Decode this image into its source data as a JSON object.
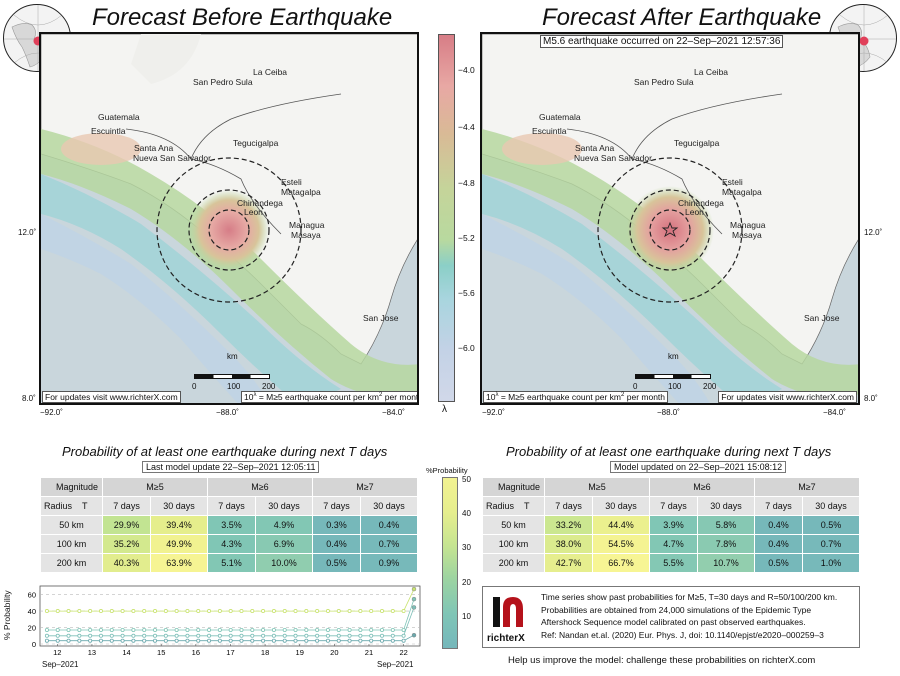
{
  "left_title": "Forecast Before Earthquake",
  "right_title": "Forecast After Earthquake",
  "event_label": "M5.6 earthquake occurred on 22–Sep–2021 12:57:36",
  "cities": [
    {
      "name": "San Pedro Sula",
      "id": "san-pedro-sula"
    },
    {
      "name": "La Ceiba",
      "id": "la-ceiba"
    },
    {
      "name": "Guatemala",
      "id": "guatemala"
    },
    {
      "name": "Escuintla",
      "id": "escuintla"
    },
    {
      "name": "Santa Ana",
      "id": "santa-ana"
    },
    {
      "name": "Nueva San Salvador",
      "id": "nueva-san-salvador"
    },
    {
      "name": "Tegucigalpa",
      "id": "tegucigalpa"
    },
    {
      "name": "Esteli",
      "id": "esteli"
    },
    {
      "name": "Matagalpa",
      "id": "matagalpa"
    },
    {
      "name": "Chinandega",
      "id": "chinandega"
    },
    {
      "name": "Leon",
      "id": "leon"
    },
    {
      "name": "Managua",
      "id": "managua"
    },
    {
      "name": "Masaya",
      "id": "masaya"
    },
    {
      "name": "San Jose",
      "id": "san-jose"
    }
  ],
  "axes": {
    "x_ticks": [
      "−92.0˚",
      "−88.0˚",
      "−84.0˚"
    ],
    "y_ticks": [
      "12.0˚",
      "8.0˚"
    ],
    "scale_unit": "km",
    "scale_ticks": [
      "0",
      "100",
      "200"
    ]
  },
  "footer": {
    "updates": "For updates visit www.richterX.com",
    "legend_prefix": "10",
    "legend_sup": "λ",
    "legend_mid": " = M≥5 earthquake count per km",
    "legend_sq": "2",
    "legend_end": " per month"
  },
  "colorbar": {
    "ticks": [
      "−4.0",
      "−4.4",
      "−4.8",
      "−5.2",
      "−5.6",
      "−6.0"
    ],
    "label": "λ"
  },
  "prob_title": "Probability of at least one earthquake during next T days",
  "left_update": "Last model update 22–Sep–2021 12:05:11",
  "right_update": "Model updated on 22–Sep–2021 15:08:12",
  "table_headers": {
    "magnitude": "Magnitude",
    "radius": "Radius",
    "t": "T",
    "m5": "M≥5",
    "m6": "M≥6",
    "m7": "M≥7",
    "d7": "7 days",
    "d30": "30 days"
  },
  "left_table": [
    {
      "radius": "50 km",
      "values": [
        "29.9%",
        "39.4%",
        "3.5%",
        "4.9%",
        "0.3%",
        "0.4%"
      ]
    },
    {
      "radius": "100 km",
      "values": [
        "35.2%",
        "49.9%",
        "4.3%",
        "6.9%",
        "0.4%",
        "0.7%"
      ]
    },
    {
      "radius": "200 km",
      "values": [
        "40.3%",
        "63.9%",
        "5.1%",
        "10.0%",
        "0.5%",
        "0.9%"
      ]
    }
  ],
  "right_table": [
    {
      "radius": "50 km",
      "values": [
        "33.2%",
        "44.4%",
        "3.9%",
        "5.8%",
        "0.4%",
        "0.5%"
      ]
    },
    {
      "radius": "100 km",
      "values": [
        "38.0%",
        "54.5%",
        "4.7%",
        "7.8%",
        "0.4%",
        "0.7%"
      ]
    },
    {
      "radius": "200 km",
      "values": [
        "42.7%",
        "66.7%",
        "5.5%",
        "10.7%",
        "0.5%",
        "1.0%"
      ]
    }
  ],
  "prob_colorbar": {
    "label": "%Probability",
    "ticks": [
      "50",
      "40",
      "30",
      "20",
      "10"
    ]
  },
  "timeseries": {
    "ylabel": "% Probability",
    "x_ticks": [
      "12",
      "13",
      "14",
      "15",
      "16",
      "17",
      "18",
      "19",
      "20",
      "21",
      "22"
    ],
    "x_left_label": "Sep–2021",
    "x_right_label": "Sep–2021",
    "y_ticks": [
      "60",
      "40",
      "20",
      "0"
    ]
  },
  "chart_data": {
    "type": "line",
    "x": [
      12,
      13,
      14,
      15,
      16,
      17,
      18,
      19,
      20,
      21,
      22
    ],
    "ylim": [
      0,
      68
    ],
    "series": [
      {
        "values": [
          40,
          40,
          40,
          40,
          40,
          40,
          40,
          40,
          40,
          40,
          40
        ],
        "end": 66.7
      },
      {
        "values": [
          17,
          17,
          17,
          17,
          17,
          17,
          17,
          17,
          17,
          17,
          17
        ],
        "end": 54.5
      },
      {
        "values": [
          10,
          10,
          10,
          10,
          10,
          10,
          10,
          10,
          10,
          10,
          10
        ],
        "end": 44.4
      },
      {
        "values": [
          4,
          4,
          4,
          4,
          4,
          4,
          4,
          4,
          4,
          4,
          4
        ],
        "end": 10.7
      }
    ]
  },
  "info": {
    "brand": "richterX",
    "line1": "Time series show past probabilities for M≥5, T=30 days and R=50/100/200 km.",
    "line2": "Probabilities are obtained from 24,000 simulations of the Epidemic Type",
    "line3": "Aftershock Sequence model calibrated on past observed earthquakes.",
    "line4": "Ref: Nandan et.al. (2020) Eur. Phys. J, doi: 10.1140/epjst/e2020–000259–3"
  },
  "help_text": "Help us improve the model: challenge these probabilities on richterX.com",
  "colors": {
    "land": "#f4f4f2",
    "sea": "#c9d6dc",
    "table_green": "#7fc5b6"
  }
}
